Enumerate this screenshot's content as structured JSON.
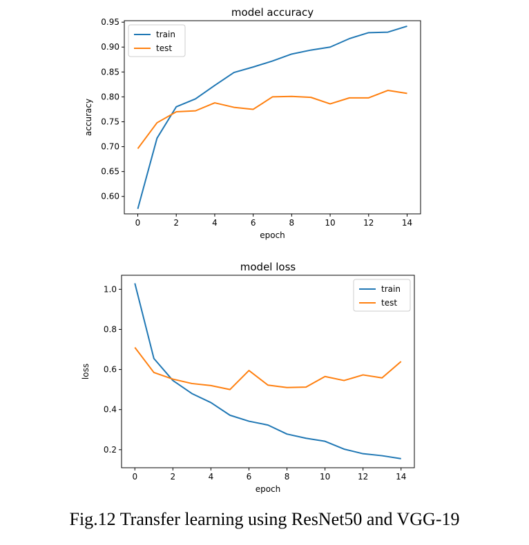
{
  "caption": "Fig.12 Transfer learning using ResNet50 and VGG-19",
  "colors": {
    "train": "#1f77b4",
    "test": "#ff7f0e"
  },
  "chart_data": [
    {
      "type": "line",
      "title": "model accuracy",
      "xlabel": "epoch",
      "ylabel": "accuracy",
      "x": [
        0,
        1,
        2,
        3,
        4,
        5,
        6,
        7,
        8,
        9,
        10,
        11,
        12,
        13,
        14
      ],
      "xlim": [
        -0.7,
        14.7
      ],
      "ylim": [
        0.565,
        0.953
      ],
      "xticks": [
        0,
        2,
        4,
        6,
        8,
        10,
        12,
        14
      ],
      "yticks": [
        0.6,
        0.65,
        0.7,
        0.75,
        0.8,
        0.85,
        0.9,
        0.95
      ],
      "ytick_labels": [
        "0.60",
        "0.65",
        "0.70",
        "0.75",
        "0.80",
        "0.85",
        "0.90",
        "0.95"
      ],
      "legend_position": "upper left",
      "grid": false,
      "series": [
        {
          "name": "train",
          "values": [
            0.575,
            0.717,
            0.78,
            0.796,
            0.823,
            0.849,
            0.86,
            0.872,
            0.886,
            0.894,
            0.9,
            0.917,
            0.929,
            0.93,
            0.942
          ]
        },
        {
          "name": "test",
          "values": [
            0.696,
            0.748,
            0.77,
            0.772,
            0.788,
            0.779,
            0.775,
            0.8,
            0.801,
            0.799,
            0.786,
            0.798,
            0.798,
            0.813,
            0.807
          ]
        }
      ]
    },
    {
      "type": "line",
      "title": "model loss",
      "xlabel": "epoch",
      "ylabel": "loss",
      "x": [
        0,
        1,
        2,
        3,
        4,
        5,
        6,
        7,
        8,
        9,
        10,
        11,
        12,
        13,
        14
      ],
      "xlim": [
        -0.7,
        14.7
      ],
      "ylim": [
        0.11,
        1.07
      ],
      "xticks": [
        0,
        2,
        4,
        6,
        8,
        10,
        12,
        14
      ],
      "yticks": [
        0.2,
        0.4,
        0.6,
        0.8,
        1.0
      ],
      "ytick_labels": [
        "0.2",
        "0.4",
        "0.6",
        "0.8",
        "1.0"
      ],
      "legend_position": "upper right",
      "grid": false,
      "series": [
        {
          "name": "train",
          "values": [
            1.03,
            0.655,
            0.545,
            0.48,
            0.435,
            0.372,
            0.342,
            0.323,
            0.278,
            0.257,
            0.242,
            0.203,
            0.18,
            0.17,
            0.155
          ]
        },
        {
          "name": "test",
          "values": [
            0.71,
            0.585,
            0.552,
            0.53,
            0.52,
            0.5,
            0.595,
            0.522,
            0.51,
            0.512,
            0.565,
            0.545,
            0.573,
            0.558,
            0.64
          ]
        }
      ]
    }
  ]
}
